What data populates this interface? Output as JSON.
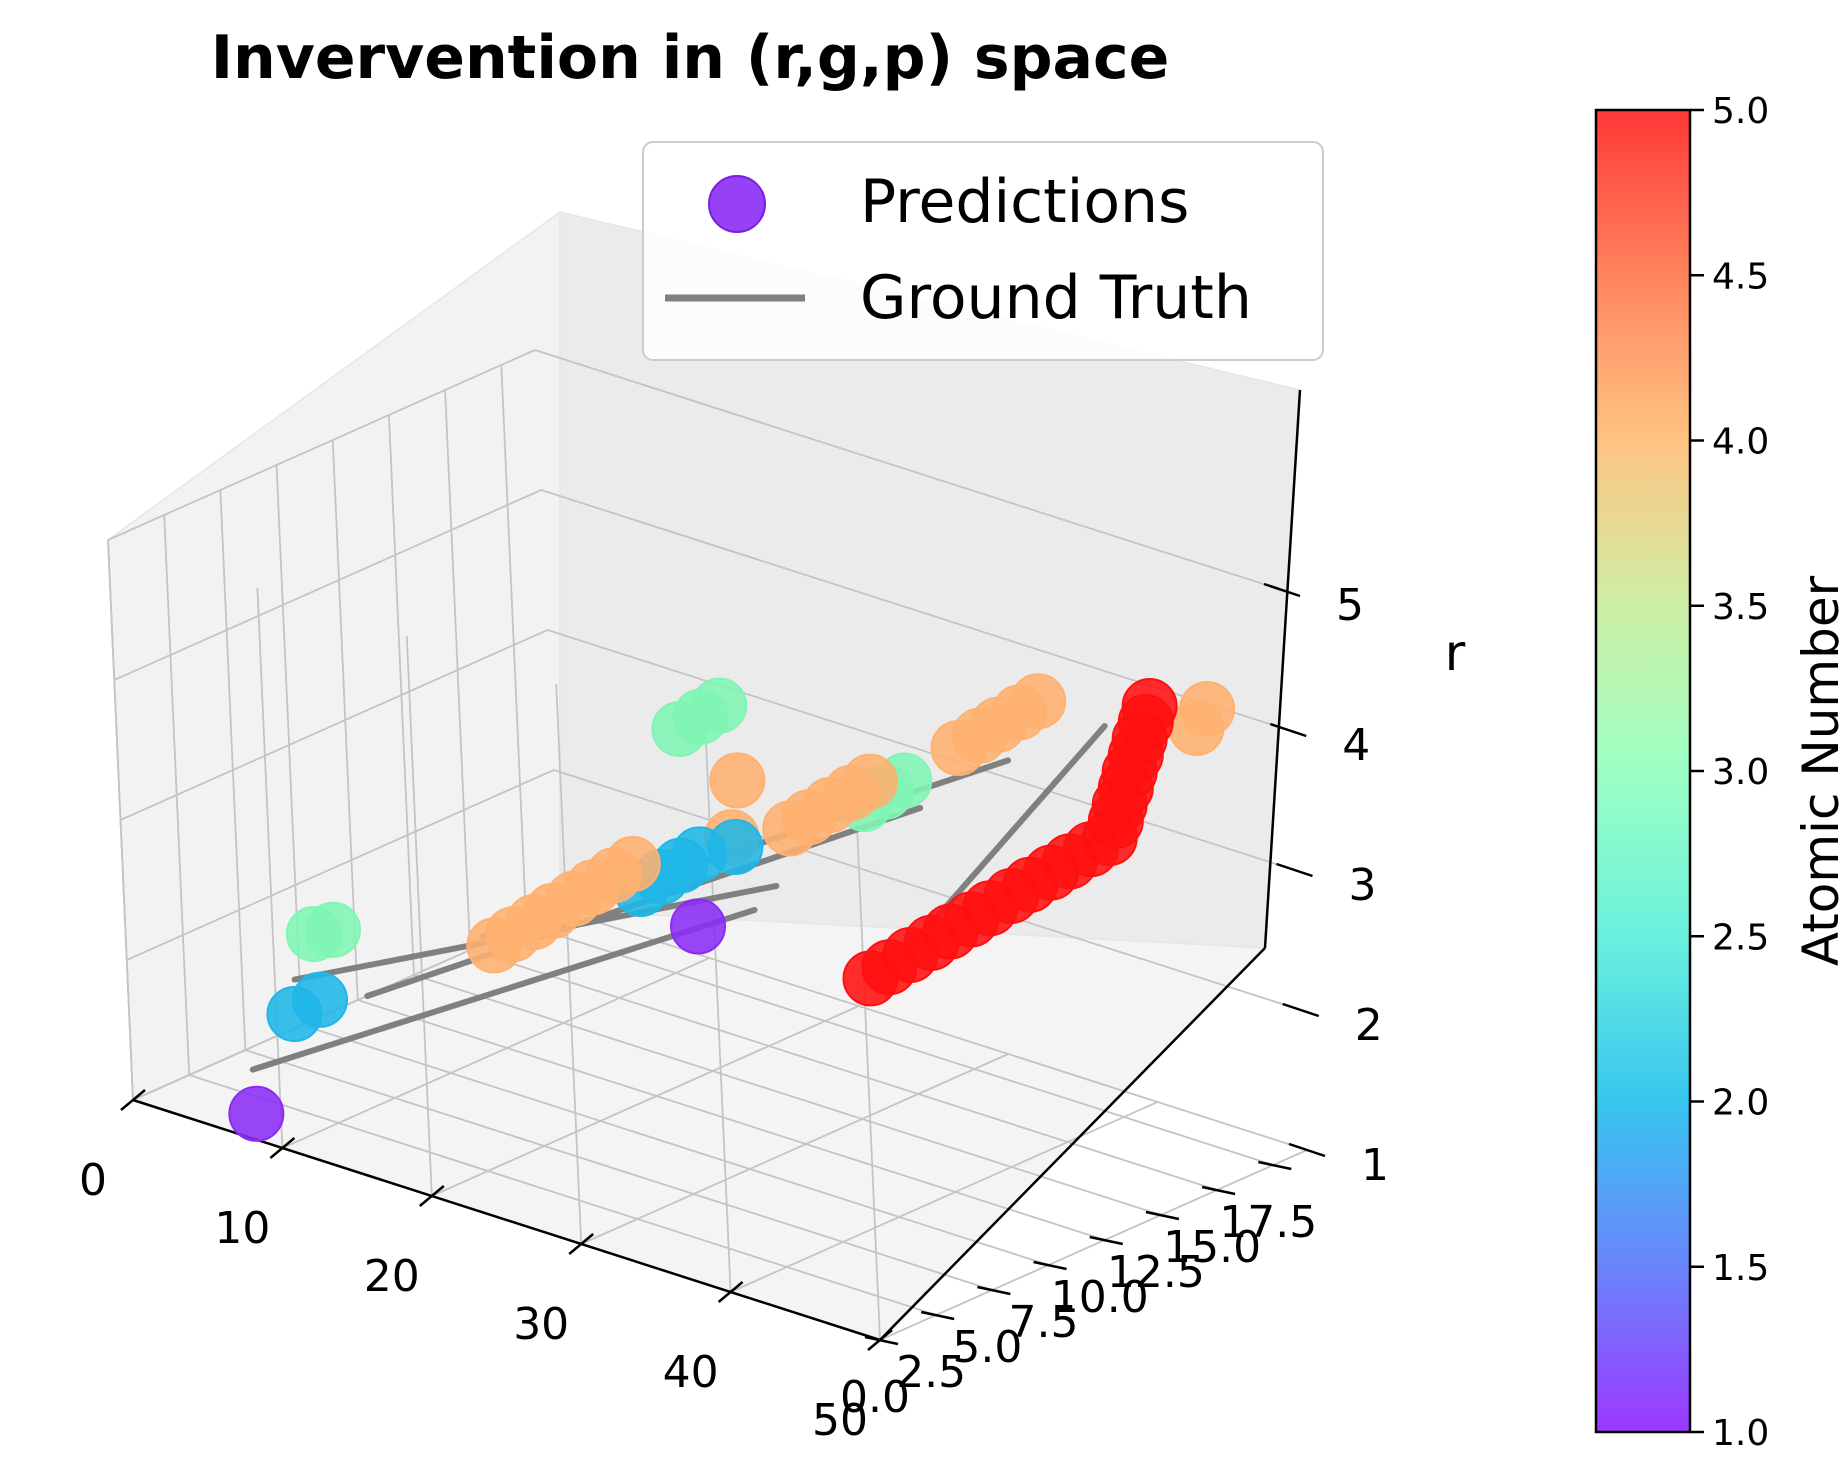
{
  "chart_data": {
    "type": "scatter",
    "title": "Invervention in (r,g,p) space",
    "xlabel": "",
    "ylabel": "",
    "zlabel": "r",
    "x_ticks": [
      "0",
      "10",
      "20",
      "30",
      "40",
      "50"
    ],
    "y_ticks": [
      "0.0",
      "2.5",
      "5.0",
      "7.5",
      "10.0",
      "12.5",
      "15.0",
      "17.5"
    ],
    "z_ticks": [
      "1",
      "2",
      "3",
      "4",
      "5"
    ],
    "xlim": [
      0,
      50
    ],
    "ylim": [
      0,
      19
    ],
    "zlim": [
      1,
      5
    ],
    "grid": true,
    "legend_position": "top",
    "legend": [
      {
        "label": "Predictions",
        "marker": "circle",
        "color": "#8b2cf5"
      },
      {
        "label": "Ground Truth",
        "marker": "line",
        "color": "#808080"
      }
    ],
    "colorbar": {
      "label": "Atomic Number",
      "colormap": "rainbow",
      "range": [
        1,
        5
      ],
      "ticks": [
        "1.0",
        "1.5",
        "2.0",
        "2.5",
        "3.0",
        "3.5",
        "4.0",
        "4.5",
        "5.0"
      ]
    },
    "colors": {
      "1": "#8b2cf5",
      "2": "#1fb6e8",
      "3": "#7ff5b4",
      "4": "#ffb170",
      "5": "#ff1010"
    },
    "ground_truth_lines": [
      {
        "atomic_number": 1,
        "start": [
          2,
          4,
          1.0
        ],
        "end": [
          35,
          5,
          3.2
        ]
      },
      {
        "atomic_number": 2,
        "start": [
          2,
          6,
          1.5
        ],
        "end": [
          35,
          6,
          3.3
        ]
      },
      {
        "atomic_number": 3,
        "start": [
          10,
          4,
          1.8
        ],
        "end": [
          45,
          6,
          4.2
        ]
      },
      {
        "atomic_number": 4,
        "start": [
          18,
          4,
          2.5
        ],
        "end": [
          48,
          8,
          4.5
        ]
      },
      {
        "atomic_number": 5,
        "start": [
          40,
          8,
          2.8
        ],
        "end": [
          50,
          11,
          4.6
        ]
      }
    ],
    "series": [
      {
        "name": "Predictions",
        "atomic_number": 1,
        "points": [
          [
            6,
            1.5,
            1.0
          ],
          [
            28,
            7,
            2.7
          ]
        ]
      },
      {
        "name": "Predictions",
        "atomic_number": 2,
        "points": [
          [
            5,
            4,
            1.5
          ],
          [
            6,
            4.5,
            1.6
          ],
          [
            25,
            6.5,
            2.9
          ],
          [
            26,
            6.8,
            3.0
          ],
          [
            27,
            7,
            3.1
          ],
          [
            28,
            7.2,
            3.2
          ],
          [
            30,
            7.5,
            3.3
          ]
        ]
      },
      {
        "name": "Predictions",
        "atomic_number": 3,
        "points": [
          [
            5,
            5,
            2.0
          ],
          [
            6,
            5.2,
            2.05
          ],
          [
            25,
            8.5,
            3.9
          ],
          [
            26,
            8.8,
            4.0
          ],
          [
            27,
            9,
            4.1
          ],
          [
            35,
            10,
            3.6
          ],
          [
            36,
            10.3,
            3.7
          ],
          [
            37,
            10.5,
            3.8
          ]
        ]
      },
      {
        "name": "Predictions",
        "atomic_number": 4,
        "points": [
          [
            18,
            4.5,
            2.4
          ],
          [
            19,
            4.7,
            2.5
          ],
          [
            20,
            5,
            2.6
          ],
          [
            21,
            5.2,
            2.7
          ],
          [
            22,
            5.5,
            2.8
          ],
          [
            23,
            5.7,
            2.9
          ],
          [
            24,
            6,
            3.0
          ],
          [
            25,
            6.2,
            3.1
          ],
          [
            28,
            9,
            3.6
          ],
          [
            29,
            8,
            3.3
          ],
          [
            33,
            8,
            3.5
          ],
          [
            34,
            8.2,
            3.6
          ],
          [
            35,
            8.5,
            3.7
          ],
          [
            36,
            8.8,
            3.8
          ],
          [
            37,
            9,
            3.9
          ],
          [
            40,
            11,
            4.1
          ],
          [
            41,
            11.3,
            4.2
          ],
          [
            42,
            11.5,
            4.3
          ],
          [
            43,
            11.8,
            4.4
          ],
          [
            44,
            12,
            4.5
          ],
          [
            50,
            15,
            4.3
          ],
          [
            50,
            15.5,
            4.4
          ]
        ]
      },
      {
        "name": "Predictions",
        "atomic_number": 5,
        "points": [
          [
            38,
            8,
            2.6
          ],
          [
            39,
            8.2,
            2.7
          ],
          [
            40,
            8.5,
            2.8
          ],
          [
            41,
            8.8,
            2.9
          ],
          [
            42,
            9,
            3.0
          ],
          [
            43,
            9.3,
            3.1
          ],
          [
            44,
            9.5,
            3.2
          ],
          [
            45,
            9.8,
            3.3
          ],
          [
            46,
            10,
            3.4
          ],
          [
            47,
            10.3,
            3.5
          ],
          [
            48,
            10.5,
            3.6
          ],
          [
            49,
            10.8,
            3.7
          ],
          [
            50,
            11,
            3.8
          ],
          [
            50,
            11.3,
            3.9
          ],
          [
            50,
            11.5,
            4.0
          ],
          [
            50,
            11.8,
            4.1
          ],
          [
            50,
            12,
            4.2
          ],
          [
            50,
            12.3,
            4.3
          ],
          [
            50,
            12.5,
            4.4
          ],
          [
            50,
            12.8,
            4.5
          ],
          [
            50,
            13,
            4.6
          ]
        ]
      }
    ]
  }
}
